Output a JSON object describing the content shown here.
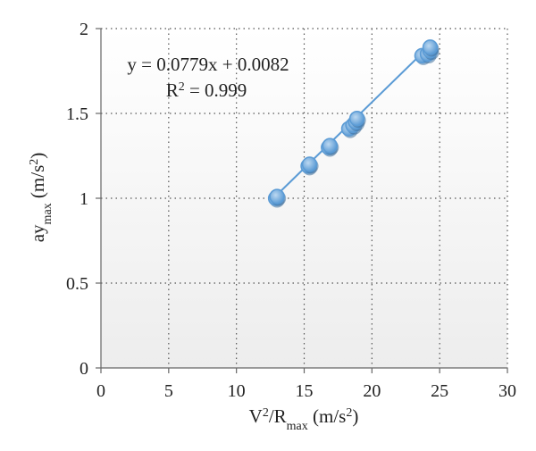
{
  "chart_data": {
    "type": "scatter",
    "x_axis": {
      "label": "V2/Rmax (m/s2)",
      "range": [
        0,
        30
      ],
      "ticks": [
        0,
        5,
        10,
        15,
        20,
        25,
        30
      ],
      "tick_labels": [
        "0",
        "5",
        "10",
        "15",
        "20",
        "25",
        "30"
      ]
    },
    "y_axis": {
      "label": "aymax (m/s2)",
      "range": [
        0,
        2
      ],
      "ticks": [
        0,
        0.5,
        1,
        1.5,
        2
      ],
      "tick_labels": [
        "0",
        "0.5",
        "1",
        "1.5",
        "2"
      ]
    },
    "grid": true,
    "series": [
      {
        "points": [
          {
            "x": 12.9,
            "y": 1.0
          },
          {
            "x": 13.0,
            "y": 1.01
          },
          {
            "x": 15.3,
            "y": 1.19
          },
          {
            "x": 15.4,
            "y": 1.2
          },
          {
            "x": 16.8,
            "y": 1.3
          },
          {
            "x": 16.9,
            "y": 1.31
          },
          {
            "x": 18.3,
            "y": 1.41
          },
          {
            "x": 18.6,
            "y": 1.43
          },
          {
            "x": 18.8,
            "y": 1.45
          },
          {
            "x": 18.9,
            "y": 1.47
          },
          {
            "x": 23.7,
            "y": 1.84
          },
          {
            "x": 24.1,
            "y": 1.85
          },
          {
            "x": 24.3,
            "y": 1.87
          },
          {
            "x": 24.3,
            "y": 1.89
          }
        ],
        "color": "#5b9bd5"
      }
    ],
    "trendline": {
      "slope": 0.0779,
      "intercept": 0.0082,
      "x_range": [
        12.9,
        24.3
      ],
      "equation_text": "y = 0.0779x + 0.0082",
      "r2_text": "R2 = 0.999",
      "color": "#5b9bd5"
    }
  }
}
